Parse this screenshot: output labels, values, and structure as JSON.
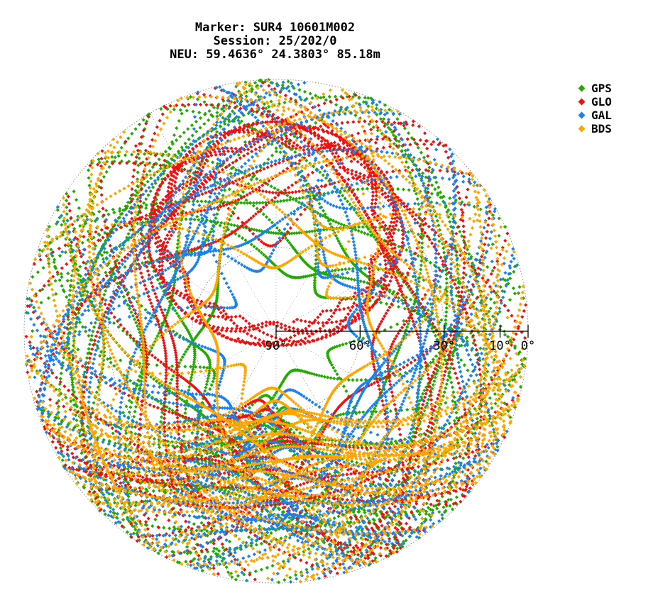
{
  "title": {
    "line1": "Marker: SUR4 10601M002",
    "line2": "Session: 25/202/0",
    "line3": "NEU: 59.4636° 24.3803° 85.18m"
  },
  "chart_data": {
    "type": "scatter",
    "projection": "polar-skyplot",
    "elevation_ticks": [
      "90°",
      "60°",
      "30°",
      "10°",
      "0°"
    ],
    "elevation_tick_values": [
      90,
      60,
      30,
      10,
      0
    ],
    "elevation_range": [
      0,
      90
    ],
    "grid": true,
    "legend_position": "top-right",
    "series": [
      {
        "name": "GPS",
        "color": "#22aa00"
      },
      {
        "name": "GLO",
        "color": "#ee1111"
      },
      {
        "name": "GAL",
        "color": "#1a82ee"
      },
      {
        "name": "BDS",
        "color": "#ffa500"
      }
    ]
  }
}
